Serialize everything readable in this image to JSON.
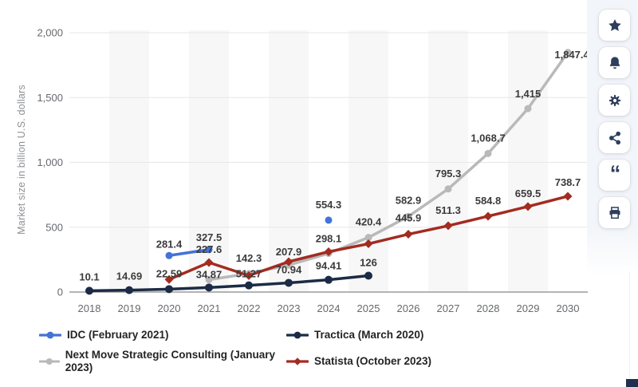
{
  "chart_data": {
    "type": "line",
    "title": "",
    "ylabel": "Market size in billion U.S. dollars",
    "x_start": 2018,
    "x_categories": [
      "2018",
      "2019",
      "2020",
      "2021",
      "2022",
      "2023",
      "2024",
      "2025",
      "2026",
      "2027",
      "2028",
      "2029",
      "2030"
    ],
    "y_ticks": [
      {
        "value": 0,
        "label": "0"
      },
      {
        "value": 500,
        "label": "500"
      },
      {
        "value": 1000,
        "label": "1,000"
      },
      {
        "value": 1500,
        "label": "1,500"
      },
      {
        "value": 2000,
        "label": "2,000"
      }
    ],
    "ylim": [
      0,
      2000
    ],
    "grid": true,
    "alternating_bands": true,
    "legend_position": "bottom-left",
    "colors": {
      "band": "#f7f7f7",
      "grid": "#e7e7e7",
      "axis_line": "#9b9b9b",
      "axis_text": "#66696d",
      "data_label": "#3b3b3b"
    },
    "series": [
      {
        "name": "IDC (February 2021)",
        "color": "#4472d6",
        "marker": "circle",
        "points": [
          {
            "year": 2020,
            "value": 281.4,
            "label": "281.4",
            "ldy": -10
          },
          {
            "year": 2021,
            "value": 327.5,
            "label": "327.5",
            "ldy": -11
          },
          {
            "year": 2024,
            "value": 554.3,
            "label": "554.3",
            "ldy": -15
          }
        ]
      },
      {
        "name": "Tractica (March 2020)",
        "color": "#1c2b45",
        "marker": "circle",
        "points": [
          {
            "year": 2018,
            "value": 10.1,
            "label": "10.1",
            "ldy": -13
          },
          {
            "year": 2019,
            "value": 14.69,
            "label": "14.69",
            "ldy": -13
          },
          {
            "year": 2020,
            "value": 22.59,
            "label": "22.59",
            "ldy": -15
          },
          {
            "year": 2021,
            "value": 34.87,
            "label": "34.87",
            "ldy": -12
          },
          {
            "year": 2022,
            "value": 51.27,
            "label": "51.27",
            "ldy": -10
          },
          {
            "year": 2023,
            "value": 70.94,
            "label": "70.94",
            "ldy": -12
          },
          {
            "year": 2024,
            "value": 94.41,
            "label": "94.41",
            "ldy": -13
          },
          {
            "year": 2025,
            "value": 126,
            "label": "126",
            "ldy": -12
          }
        ]
      },
      {
        "name": "Next Move Strategic Consulting (January 2023)",
        "color": "#b9b9b9",
        "marker": "circle",
        "points": [
          {
            "year": 2021,
            "value": 95.6,
            "label": null
          },
          {
            "year": 2022,
            "value": 142.3,
            "label": "142.3",
            "ldy": -15
          },
          {
            "year": 2023,
            "value": 207.9,
            "label": "207.9",
            "ldy": -12
          },
          {
            "year": 2024,
            "value": 298.1,
            "label": "298.1",
            "ldy": -14
          },
          {
            "year": 2025,
            "value": 420.4,
            "label": "420.4",
            "ldy": -15
          },
          {
            "year": 2026,
            "value": 582.9,
            "label": "582.9",
            "ldy": -16
          },
          {
            "year": 2027,
            "value": 795.3,
            "label": "795.3",
            "ldy": -15
          },
          {
            "year": 2028,
            "value": 1068.7,
            "label": "1,068.7",
            "ldy": -15
          },
          {
            "year": 2029,
            "value": 1415,
            "label": "1,415",
            "ldy": -14
          },
          {
            "year": 2030,
            "value": 1847.4,
            "label": "1,847.4",
            "ldy": 7,
            "ldx": 5
          }
        ]
      },
      {
        "name": "Statista (October 2023)",
        "color": "#a32b20",
        "marker": "diamond",
        "points": [
          {
            "year": 2020,
            "value": 97,
            "label": null
          },
          {
            "year": 2021,
            "value": 227.6,
            "label": "227.6",
            "ldy": -12
          },
          {
            "year": 2022,
            "value": 127,
            "label": null
          },
          {
            "year": 2023,
            "value": 234,
            "label": null
          },
          {
            "year": 2024,
            "value": 311,
            "label": null
          },
          {
            "year": 2025,
            "value": 372,
            "label": null
          },
          {
            "year": 2026,
            "value": 445.9,
            "label": "445.9",
            "ldy": -16
          },
          {
            "year": 2027,
            "value": 511.3,
            "label": "511.3",
            "ldy": -15
          },
          {
            "year": 2028,
            "value": 584.8,
            "label": "584.8",
            "ldy": -15
          },
          {
            "year": 2029,
            "value": 659.5,
            "label": "659.5",
            "ldy": -12
          },
          {
            "year": 2030,
            "value": 738.7,
            "label": "738.7",
            "ldy": -13
          }
        ]
      }
    ]
  },
  "sidebar": {
    "buttons": [
      {
        "name": "favorite",
        "icon": "star"
      },
      {
        "name": "notifications",
        "icon": "bell"
      },
      {
        "name": "settings",
        "icon": "gear"
      },
      {
        "name": "share",
        "icon": "share"
      },
      {
        "name": "cite",
        "icon": "quote",
        "glyph": "“"
      },
      {
        "name": "print",
        "icon": "printer"
      }
    ]
  }
}
